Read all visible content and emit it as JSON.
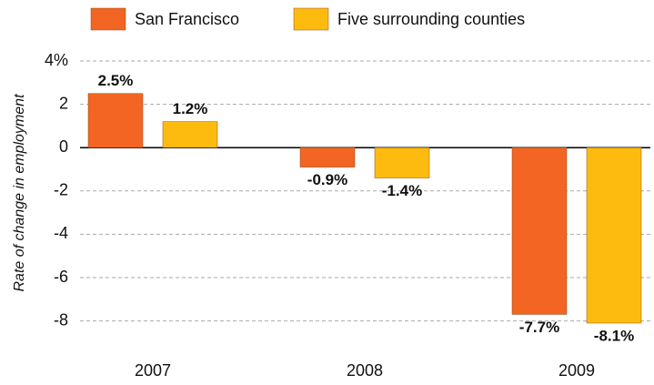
{
  "chart_data": {
    "type": "bar",
    "y_label": "Rate of change in employment",
    "categories": [
      "2007",
      "2008",
      "2009"
    ],
    "series": [
      {
        "name": "San Francisco",
        "color": "#f26522",
        "values": [
          2.5,
          -0.9,
          -7.7
        ],
        "value_labels": [
          "2.5%",
          "-0.9%",
          "-7.7%"
        ]
      },
      {
        "name": "Five surrounding counties",
        "color": "#fdbb10",
        "values": [
          1.2,
          -1.4,
          -8.1
        ],
        "value_labels": [
          "1.2%",
          "-1.4%",
          "-8.1%"
        ]
      }
    ],
    "ylim": [
      -8.5,
      4
    ],
    "yticks": [
      {
        "value": 4,
        "label": "4%"
      },
      2,
      0,
      -2,
      -4,
      -6,
      -8
    ],
    "grid": true,
    "legend": "top"
  }
}
